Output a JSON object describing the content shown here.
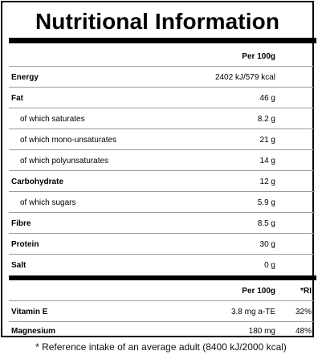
{
  "title": "Nutritional Information",
  "nutrition": {
    "header_label": "Per 100g",
    "rows": [
      {
        "label": "Energy",
        "value": "2402 kJ/579 kcal"
      },
      {
        "label": "Fat",
        "value": "46 g"
      },
      {
        "label": "of which saturates",
        "value": "8.2 g"
      },
      {
        "label": "of which mono-unsaturates",
        "value": "21 g"
      },
      {
        "label": "of which polyunsaturates",
        "value": "14 g"
      },
      {
        "label": "Carbohydrate",
        "value": "12 g"
      },
      {
        "label": "of which sugars",
        "value": "5.9 g"
      },
      {
        "label": "Fibre",
        "value": "8.5 g"
      },
      {
        "label": "Protein",
        "value": "30 g"
      },
      {
        "label": "Salt",
        "value": "0 g"
      }
    ]
  },
  "micronutrients": {
    "header_label": "Per 100g",
    "ri_header": "*RI",
    "rows": [
      {
        "label": "Vitamin E",
        "value": "3.8 mg a-TE",
        "ri": "32%"
      },
      {
        "label": "Magnesium",
        "value": "180 mg",
        "ri": "48%"
      }
    ]
  },
  "footnote": "* Reference intake of an average adult (8400 kJ/2000 kcal)"
}
